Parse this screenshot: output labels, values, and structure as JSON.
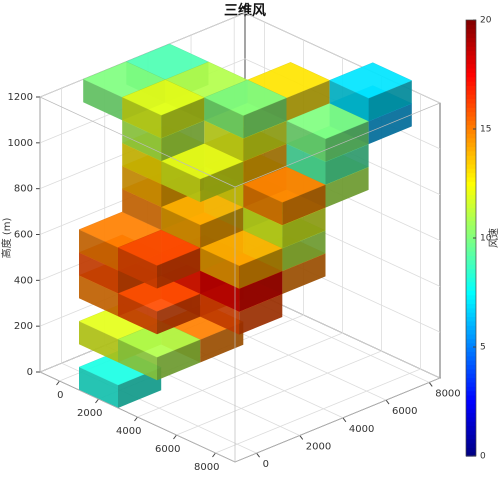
{
  "chart_data": {
    "type": "voxel3d",
    "title": "三维风",
    "zlabel": "高度 (m)",
    "colorbar_label": "风速",
    "colormap": "jet",
    "clim": [
      0,
      20
    ],
    "cticks": [
      0,
      5,
      10,
      15,
      20
    ],
    "xlim": [
      -1000,
      9000
    ],
    "xticks": [
      0,
      2000,
      4000,
      6000,
      8000
    ],
    "ylim": [
      -1000,
      8500
    ],
    "yticks": [
      0,
      2000,
      4000,
      6000,
      8000
    ],
    "zlim": [
      0,
      1200
    ],
    "zticks": [
      0,
      200,
      400,
      600,
      800,
      1000,
      1200
    ],
    "grid": true,
    "x": [
      2000,
      2000,
      4000,
      4000,
      2000,
      4000,
      4000,
      6000,
      2000,
      4000,
      6000,
      6000,
      2000,
      4000,
      4000,
      6000,
      6000,
      2000,
      4000,
      6000,
      4000,
      2000,
      4000,
      6000,
      6000,
      2000,
      4000,
      4000,
      6000,
      2000,
      4000,
      6000,
      6000,
      0,
      0,
      2000,
      2000,
      4000,
      4000,
      6000
    ],
    "y": [
      0,
      0,
      0,
      2000,
      0,
      0,
      2000,
      2000,
      0,
      2000,
      2000,
      4000,
      0,
      0,
      2000,
      2000,
      4000,
      2000,
      2000,
      4000,
      4000,
      2000,
      4000,
      4000,
      6000,
      2000,
      2000,
      4000,
      6000,
      2000,
      4000,
      6000,
      8000,
      2000,
      4000,
      2000,
      4000,
      4000,
      6000,
      8000
    ],
    "z": [
      0,
      200,
      200,
      200,
      400,
      400,
      400,
      400,
      500,
      500,
      500,
      500,
      600,
      600,
      600,
      600,
      600,
      700,
      700,
      700,
      700,
      800,
      800,
      800,
      800,
      900,
      900,
      900,
      900,
      1000,
      1000,
      1000,
      1000,
      1100,
      1100,
      1100,
      1100,
      1100,
      1100,
      1100
    ],
    "values": [
      8,
      12,
      11,
      15,
      15,
      16,
      17,
      16,
      16,
      17,
      18,
      15,
      15,
      16,
      16,
      14,
      11,
      15,
      14,
      12,
      10,
      14,
      13,
      15,
      11,
      13,
      12,
      14,
      9,
      11,
      12,
      10,
      6,
      10,
      9,
      12,
      11,
      10,
      13,
      7
    ]
  }
}
